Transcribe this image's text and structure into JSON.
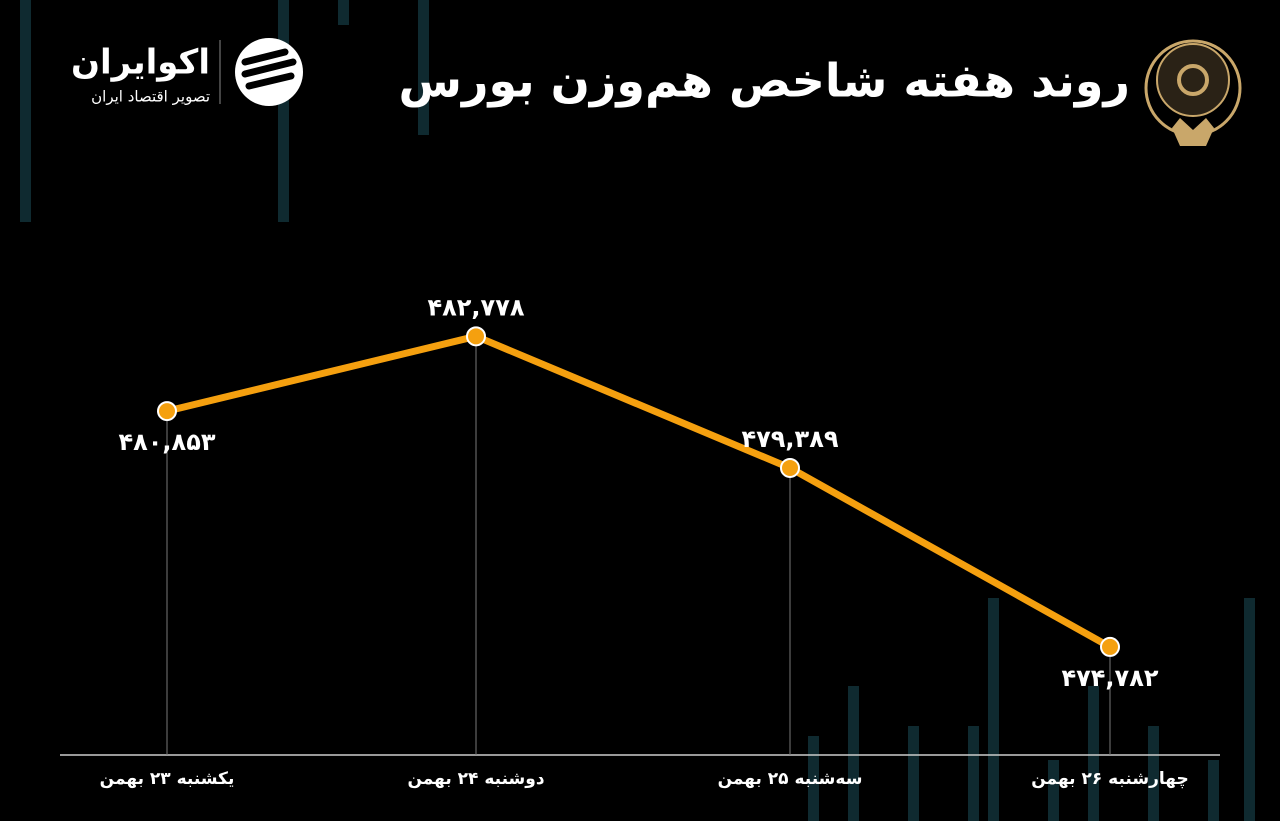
{
  "branding": {
    "name": "اکوایران",
    "tagline": "تصویر اقتصاد ایران"
  },
  "chart_data": {
    "type": "line",
    "title": "روند هفته شاخص هم‌وزن بورس",
    "categories": [
      "یکشنبه ۲۳ بهمن",
      "دوشنبه ۲۴ بهمن",
      "سه‌شنبه ۲۵ بهمن",
      "چهارشنبه ۲۶ بهمن"
    ],
    "values": [
      480853,
      482778,
      479389,
      474782
    ],
    "value_labels": [
      "۴۸۰,۸۵۳",
      "۴۸۲,۷۷۸",
      "۴۷۹,۳۸۹",
      "۴۷۴,۷۸۲"
    ],
    "color": "#f5a00f",
    "ylim": [
      472000,
      485000
    ]
  }
}
